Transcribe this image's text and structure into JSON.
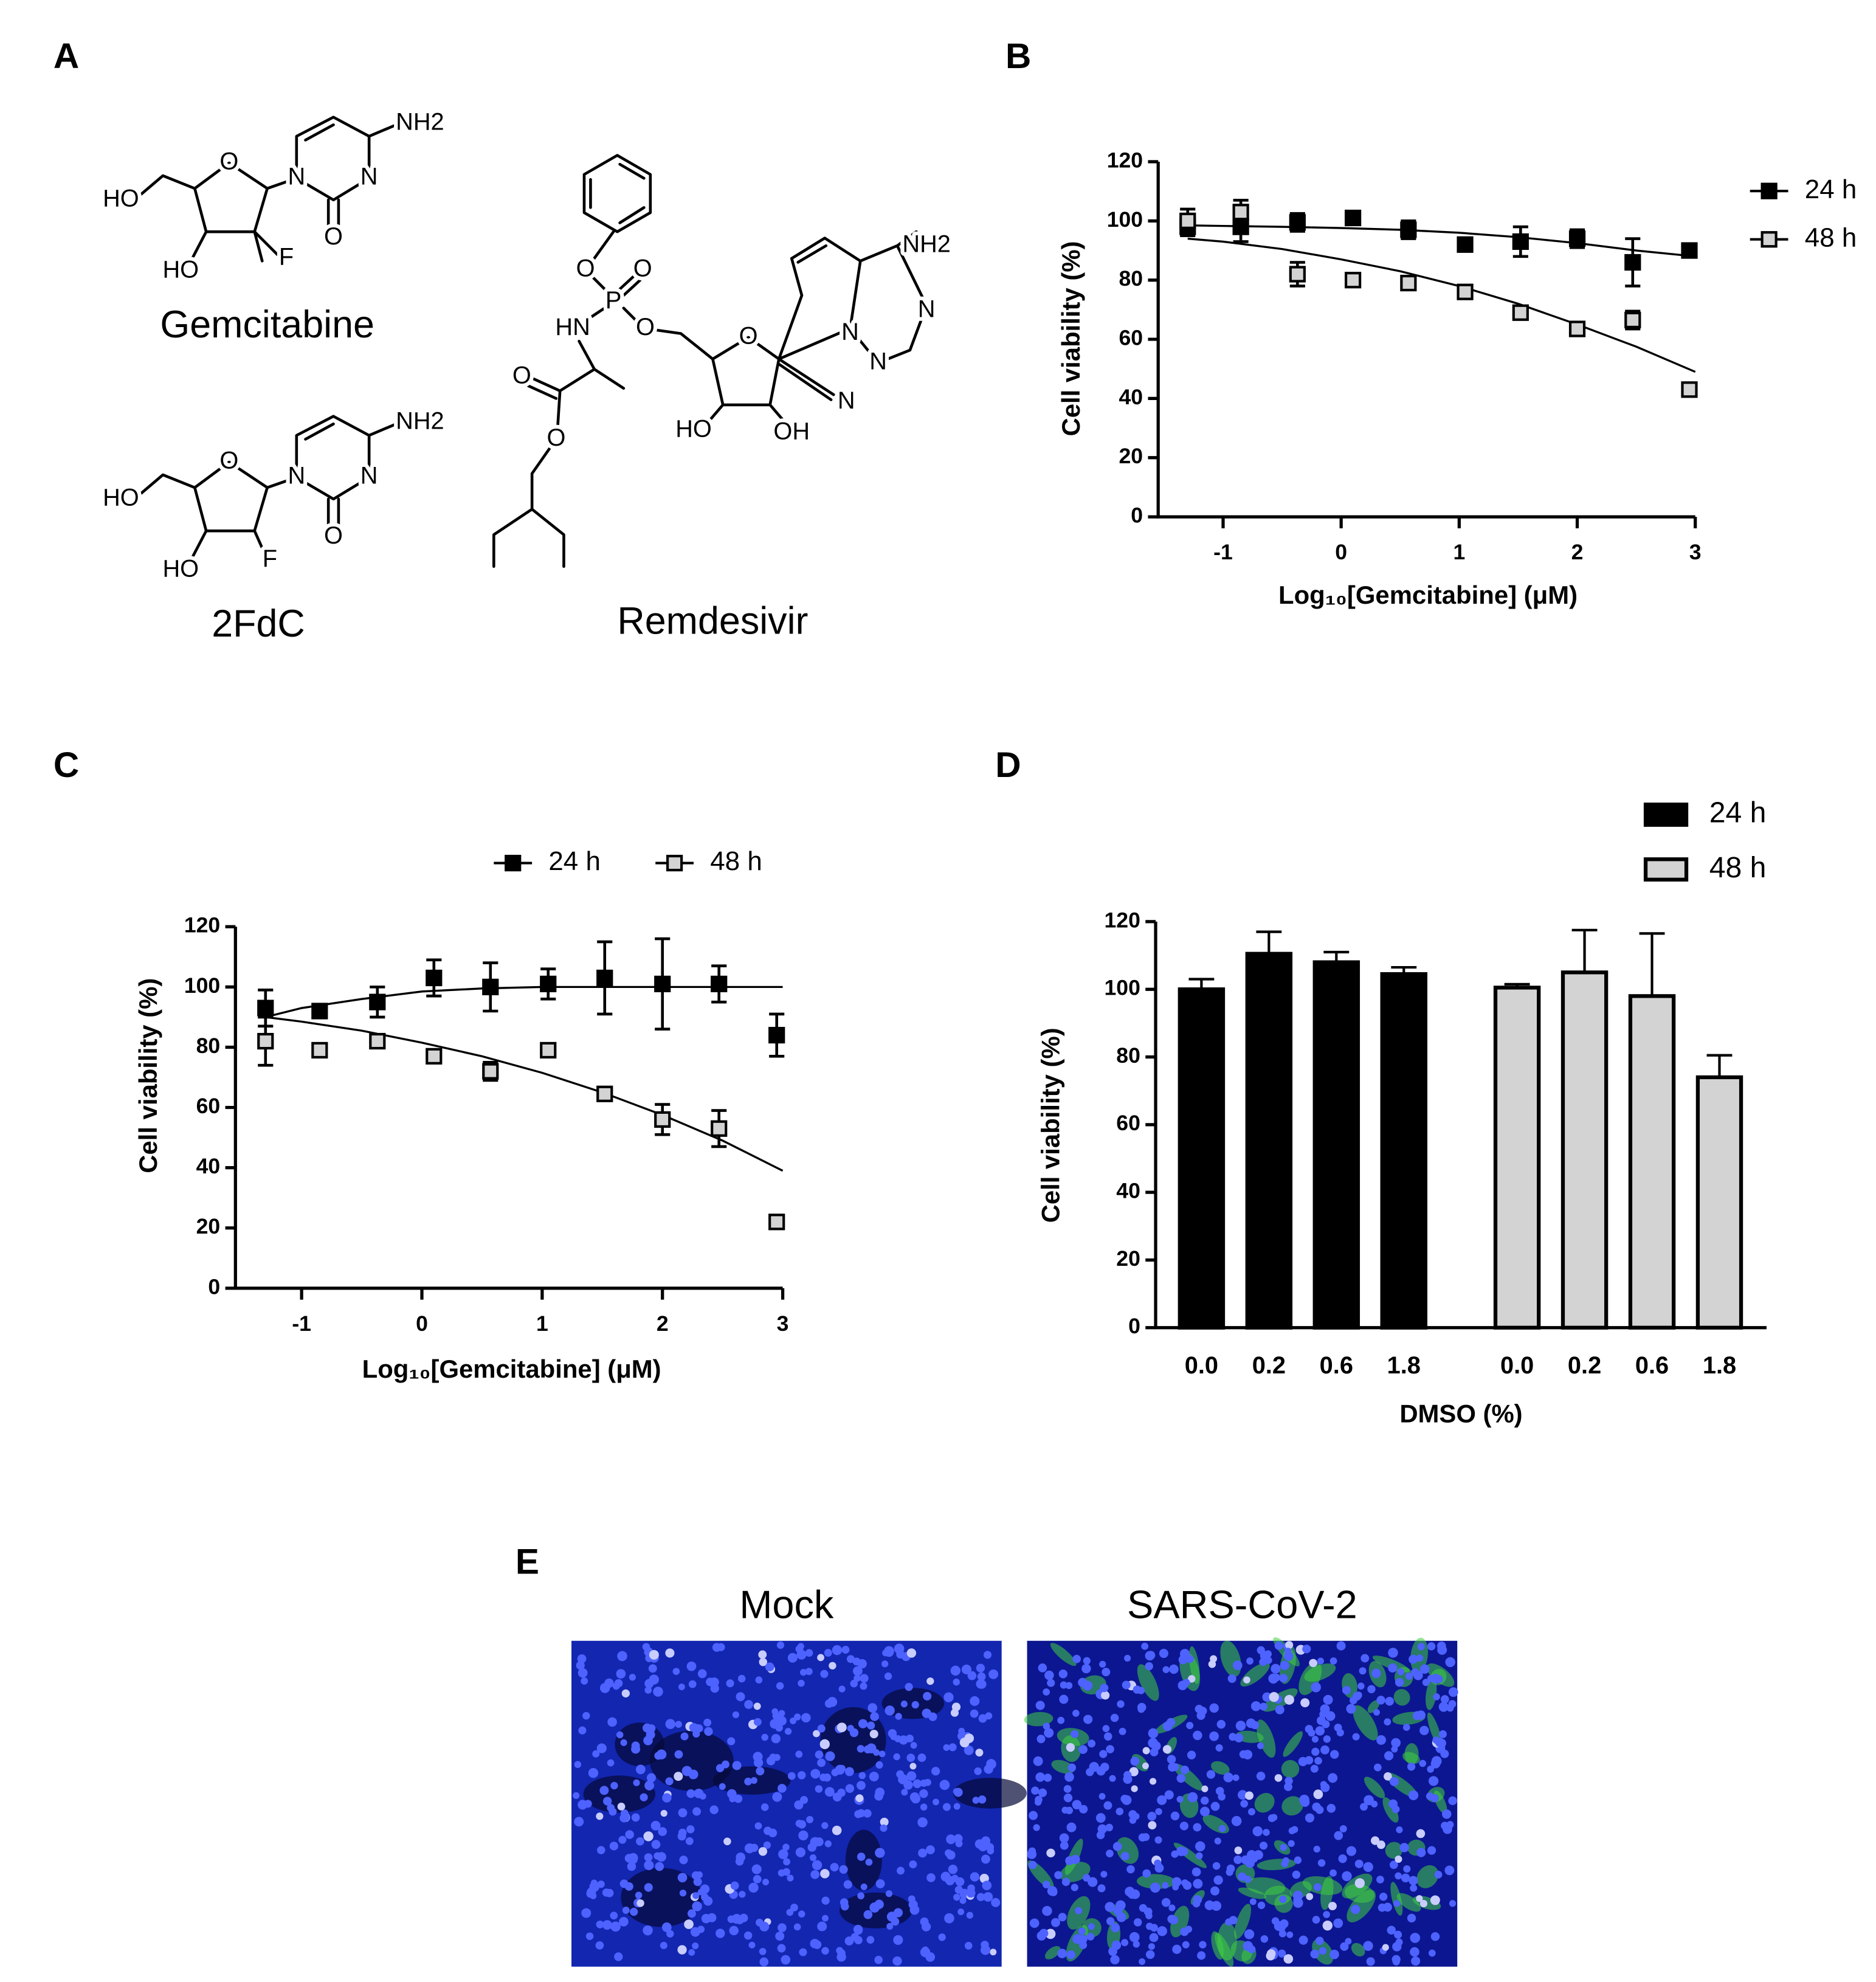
{
  "panels": {
    "labels": [
      "A",
      "B",
      "C",
      "D",
      "E"
    ]
  },
  "structures": [
    {
      "name": "Gemcitabine",
      "atoms": [
        "NH2",
        "N",
        "O",
        "N",
        "O",
        "HO",
        "HO",
        "F"
      ]
    },
    {
      "name": "2FdC",
      "atoms": [
        "NH2",
        "N",
        "O",
        "N",
        "O",
        "HO",
        "HO",
        "F"
      ]
    },
    {
      "name": "Remdesivir",
      "atoms": [
        "O",
        "P",
        "O",
        "O",
        "HN",
        "O",
        "O",
        "O",
        "HO",
        "OH",
        "N",
        "N",
        "N",
        "N",
        "NH2"
      ]
    }
  ],
  "chart_data": [
    {
      "type": "scatter",
      "xlabel": "Log₁₀[Gemcitabine] (μM)",
      "ylabel": "Cell viability (%)",
      "x": [
        -1.3,
        -0.85,
        -0.37,
        0.1,
        0.57,
        1.05,
        1.52,
        2.0,
        2.47,
        2.95
      ],
      "fit_x": [
        -1.3,
        -1,
        -0.5,
        0,
        0.5,
        1,
        1.5,
        2,
        2.5,
        3
      ],
      "series": [
        {
          "name": "24 h",
          "color": "#000000",
          "values": [
            98,
            98,
            99.5,
            101,
            97,
            92,
            93,
            94,
            86,
            90
          ],
          "errors": [
            3,
            5,
            3,
            1,
            3,
            2,
            5,
            3,
            8,
            1
          ],
          "fit": [
            98.5,
            98.3,
            98,
            97.6,
            97,
            96,
            94.5,
            92.5,
            90,
            88
          ]
        },
        {
          "name": "48 h",
          "color": "#d3d3d3",
          "values": [
            100,
            103,
            82,
            80,
            79,
            76,
            69,
            63.5,
            66.5,
            43
          ],
          "errors": [
            4,
            4,
            4,
            1,
            1,
            2,
            1,
            1,
            3,
            1
          ],
          "fit": [
            94,
            93,
            90.5,
            87,
            83,
            78,
            72,
            65,
            57.5,
            49
          ]
        }
      ],
      "xlim": [
        -1.55,
        3
      ],
      "xticks": [
        -1,
        0,
        1,
        2,
        3
      ],
      "ylim": [
        0,
        120
      ],
      "yticks": [
        0,
        20,
        40,
        60,
        80,
        100,
        120
      ],
      "legend": "right"
    },
    {
      "type": "scatter",
      "xlabel": "Log₁₀[Gemcitabine] (μM)",
      "ylabel": "Cell viability (%)",
      "x": [
        -1.3,
        -0.85,
        -0.37,
        0.1,
        0.57,
        1.05,
        1.52,
        2.0,
        2.47,
        2.95
      ],
      "fit_x": [
        -1.3,
        -1,
        -0.5,
        0,
        0.5,
        1,
        1.5,
        2,
        2.5,
        3
      ],
      "series": [
        {
          "name": "24 h",
          "color": "#000000",
          "values": [
            93,
            92,
            95,
            103,
            100,
            101,
            103,
            101,
            101,
            84
          ],
          "errors": [
            6,
            1,
            5,
            6,
            8,
            5,
            12,
            15,
            6,
            7
          ],
          "fit": [
            90,
            93,
            96,
            98.5,
            99.5,
            100,
            100,
            100,
            100,
            100
          ]
        },
        {
          "name": "48 h",
          "color": "#d3d3d3",
          "values": [
            82,
            79,
            82,
            77,
            72,
            79,
            64.5,
            56,
            53,
            22
          ],
          "errors": [
            8,
            1,
            1,
            2,
            3,
            1,
            1,
            5,
            6,
            1
          ],
          "fit": [
            90,
            88.5,
            85.5,
            81.5,
            77,
            71.5,
            65,
            57.5,
            49,
            39
          ]
        }
      ],
      "xlim": [
        -1.55,
        3
      ],
      "xticks": [
        -1,
        0,
        1,
        2,
        3
      ],
      "ylim": [
        0,
        120
      ],
      "yticks": [
        0,
        20,
        40,
        60,
        80,
        100,
        120
      ],
      "legend": "top"
    },
    {
      "type": "bar",
      "xlabel": "DMSO (%)",
      "ylabel": "Cell viability (%)",
      "categories": [
        "0.0",
        "0.2",
        "0.6",
        "1.8"
      ],
      "series": [
        {
          "name": "24 h",
          "color": "#000000",
          "values": [
            100,
            110.5,
            108,
            104.5
          ],
          "errors": [
            3,
            6.5,
            3,
            2
          ]
        },
        {
          "name": "48 h",
          "color": "#d3d3d3",
          "values": [
            100.5,
            105,
            98,
            74
          ],
          "errors": [
            1,
            12.5,
            18.5,
            6.5
          ]
        }
      ],
      "ylim": [
        0,
        120
      ],
      "yticks": [
        0,
        20,
        40,
        60,
        80,
        100,
        120
      ],
      "legend": "top-right"
    }
  ],
  "images": [
    {
      "title": "Mock"
    },
    {
      "title": "SARS-CoV-2"
    }
  ]
}
